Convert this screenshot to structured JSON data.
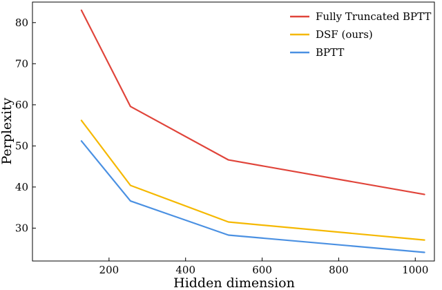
{
  "chart_data": {
    "type": "line",
    "xlabel": "Hidden dimension",
    "ylabel": "Perplexity",
    "x": [
      128,
      256,
      512,
      1024
    ],
    "xlim": [
      0,
      1050
    ],
    "ylim": [
      22,
      85
    ],
    "xticks": [
      200,
      400,
      600,
      800,
      1000
    ],
    "yticks": [
      30,
      40,
      50,
      60,
      70,
      80
    ],
    "grid": false,
    "legend_position": "top-right",
    "series": [
      {
        "name": "Fully Truncated BPTT",
        "color": "#e0443a",
        "values": [
          83.0,
          59.6,
          46.6,
          38.2
        ]
      },
      {
        "name": "DSF (ours)",
        "color": "#f5b800",
        "values": [
          56.2,
          40.4,
          31.5,
          27.1
        ]
      },
      {
        "name": "BPTT",
        "color": "#4a90e2",
        "values": [
          51.2,
          36.6,
          28.3,
          24.1
        ]
      }
    ]
  }
}
